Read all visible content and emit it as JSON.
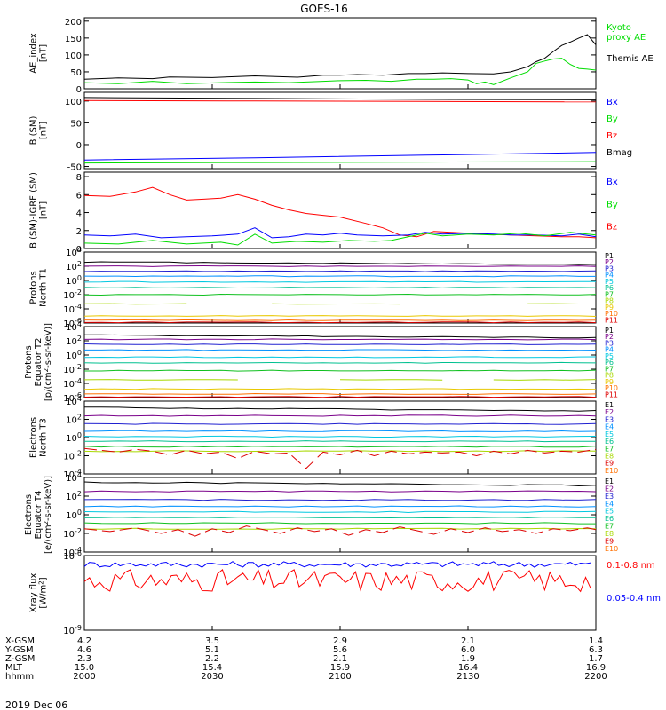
{
  "title": "GOES-16",
  "x_ticks": [
    "2000",
    "2030",
    "2100",
    "2130",
    "2200"
  ],
  "ephemeris": {
    "rows": [
      {
        "label": "X-GSM",
        "values": [
          "4.2",
          "3.5",
          "2.9",
          "2.1",
          "1.4"
        ]
      },
      {
        "label": "Y-GSM",
        "values": [
          "4.6",
          "5.1",
          "5.6",
          "6.0",
          "6.3"
        ]
      },
      {
        "label": "Z-GSM",
        "values": [
          "2.3",
          "2.2",
          "2.1",
          "1.9",
          "1.7"
        ]
      },
      {
        "label": "MLT",
        "values": [
          "15.0",
          "15.4",
          "15.9",
          "16.4",
          "16.9"
        ]
      },
      {
        "label": "hhmm",
        "values": []
      }
    ],
    "date": "2019 Dec 06"
  },
  "colors": {
    "black": "#000000",
    "red": "#ff0000",
    "green": "#00dd00",
    "blue": "#0000ff",
    "lime": "#22ee22",
    "channels": [
      "#000000",
      "#7a008a",
      "#2020d0",
      "#0090ff",
      "#00c8e0",
      "#00c090",
      "#10c020",
      "#a8d800",
      "#e8c800",
      "#ff7000",
      "#dd0000"
    ]
  },
  "chart_data": [
    {
      "type": "line",
      "ylabel": "AE_index\n[nT]",
      "y_ticks": [
        "200",
        "150",
        "100",
        "50",
        "0"
      ],
      "ylim": [
        0,
        210
      ],
      "legend": [
        {
          "label": "Kyoto\nproxy AE",
          "color": "#00dd00"
        },
        {
          "label": "Themis AE",
          "color": "#000000"
        }
      ],
      "series": [
        {
          "name": "Themis AE",
          "color": "#000000",
          "t": [
            0,
            4,
            8,
            10,
            15,
            20,
            25,
            28,
            30,
            32,
            35,
            38,
            40,
            42,
            45,
            48,
            50,
            52,
            53,
            54,
            55,
            56,
            57,
            58,
            59,
            60
          ],
          "y": [
            28,
            32,
            30,
            35,
            33,
            38,
            34,
            40,
            40,
            42,
            40,
            45,
            45,
            47,
            45,
            44,
            50,
            65,
            80,
            90,
            110,
            128,
            138,
            150,
            160,
            130
          ]
        },
        {
          "name": "Kyoto proxy AE",
          "color": "#00dd00",
          "t": [
            0,
            4,
            8,
            12,
            16,
            20,
            24,
            28,
            30,
            33,
            36,
            39,
            41,
            43,
            45,
            46,
            47,
            48,
            50,
            52,
            53,
            54,
            55,
            56,
            57,
            58,
            59,
            60
          ],
          "y": [
            18,
            15,
            22,
            15,
            18,
            20,
            18,
            22,
            24,
            25,
            22,
            28,
            28,
            30,
            26,
            15,
            20,
            12,
            32,
            50,
            75,
            82,
            88,
            90,
            72,
            60,
            58,
            55
          ]
        }
      ]
    },
    {
      "type": "line",
      "ylabel": "B (SM)\n[nT]",
      "y_ticks": [
        "100",
        "50",
        "0",
        "-50"
      ],
      "ylim": [
        -55,
        120
      ],
      "legend": [
        {
          "label": "Bx",
          "color": "#0000ff"
        },
        {
          "label": "By",
          "color": "#00dd00"
        },
        {
          "label": "Bz",
          "color": "#ff0000"
        },
        {
          "label": "Bmag",
          "color": "#000000"
        }
      ],
      "series": [
        {
          "name": "Bmag",
          "color": "#000000",
          "t": [
            0,
            20,
            40,
            60
          ],
          "y": [
            108,
            106,
            104,
            103
          ]
        },
        {
          "name": "Bz",
          "color": "#ff0000",
          "t": [
            0,
            20,
            40,
            60
          ],
          "y": [
            101,
            100,
            99,
            98
          ]
        },
        {
          "name": "Bx",
          "color": "#0000ff",
          "t": [
            0,
            20,
            40,
            60
          ],
          "y": [
            -35,
            -30,
            -24,
            -18
          ]
        },
        {
          "name": "By",
          "color": "#00dd00",
          "t": [
            0,
            20,
            40,
            60
          ],
          "y": [
            -42,
            -41,
            -40,
            -39
          ]
        }
      ]
    },
    {
      "type": "line",
      "ylabel": "B (SM)-IGRF (SM)\n[nT]",
      "y_ticks": [
        "8",
        "6",
        "4",
        "2",
        "0"
      ],
      "ylim": [
        0,
        8.5
      ],
      "legend": [
        {
          "label": "Bx",
          "color": "#0000ff"
        },
        {
          "label": "By",
          "color": "#00dd00"
        },
        {
          "label": "Bz",
          "color": "#ff0000"
        }
      ],
      "series": [
        {
          "name": "Bz",
          "color": "#ff0000",
          "t": [
            0,
            3,
            6,
            8,
            10,
            12,
            14,
            16,
            18,
            20,
            22,
            24,
            26,
            28,
            30,
            33,
            35,
            37,
            39,
            41,
            43,
            45,
            47,
            50,
            53,
            56,
            58,
            60
          ],
          "y": [
            5.9,
            5.8,
            6.3,
            6.8,
            6.0,
            5.4,
            5.5,
            5.6,
            6.0,
            5.5,
            4.8,
            4.3,
            3.9,
            3.7,
            3.5,
            2.8,
            2.3,
            1.5,
            1.3,
            1.9,
            1.8,
            1.7,
            1.6,
            1.5,
            1.4,
            1.3,
            1.3,
            1.2
          ]
        },
        {
          "name": "Bx",
          "color": "#0000ff",
          "t": [
            0,
            3,
            6,
            9,
            12,
            15,
            18,
            20,
            22,
            24,
            26,
            28,
            30,
            32,
            35,
            38,
            40,
            42,
            45,
            48,
            50,
            53,
            56,
            58,
            60
          ],
          "y": [
            1.5,
            1.4,
            1.6,
            1.2,
            1.3,
            1.4,
            1.6,
            2.3,
            1.2,
            1.3,
            1.6,
            1.5,
            1.7,
            1.5,
            1.4,
            1.5,
            1.8,
            1.6,
            1.7,
            1.6,
            1.5,
            1.5,
            1.4,
            1.6,
            1.3
          ]
        },
        {
          "name": "By",
          "color": "#00dd00",
          "t": [
            0,
            4,
            8,
            12,
            16,
            18,
            20,
            22,
            25,
            28,
            31,
            34,
            36,
            38,
            40,
            42,
            45,
            48,
            51,
            54,
            57,
            60
          ],
          "y": [
            0.6,
            0.5,
            0.9,
            0.5,
            0.7,
            0.4,
            1.6,
            0.6,
            0.8,
            0.7,
            0.9,
            0.8,
            0.9,
            1.3,
            1.7,
            1.4,
            1.6,
            1.5,
            1.7,
            1.4,
            1.8,
            1.5
          ]
        }
      ]
    },
    {
      "type": "line",
      "ylabel": "Protons\nNorth T1",
      "log": true,
      "ylim_log10": [
        -6,
        4
      ],
      "y_ticks": [
        "10^4",
        "10^2",
        "10^0",
        "10^-2",
        "10^-4",
        "10^-6"
      ],
      "channel_labels": [
        "P1",
        "P2",
        "P3",
        "P4",
        "P5",
        "P6",
        "P7",
        "P8",
        "P9",
        "P10",
        "P11"
      ],
      "levels_log10": [
        2.6,
        2.0,
        1.3,
        0.6,
        -0.2,
        -1.0,
        -2.0,
        -3.3,
        -5.0,
        -5.6,
        -5.9
      ],
      "gaps": [
        null,
        null,
        null,
        null,
        null,
        null,
        null,
        [
          0,
          12,
          22,
          38,
          52,
          58
        ],
        null,
        null,
        null
      ]
    },
    {
      "type": "line",
      "ylabel": "Protons\nEquator T2\n[p/(cm^2-s-sr-keV)]",
      "log": true,
      "ylim_log10": [
        -6,
        4
      ],
      "y_ticks": [
        "10^4",
        "10^2",
        "10^0",
        "10^-2",
        "10^-4",
        "10^-6"
      ],
      "channel_labels": [
        "P1",
        "P2",
        "P3",
        "P4",
        "P5",
        "P6",
        "P7",
        "P8",
        "P9",
        "P10",
        "P11"
      ],
      "levels_log10": [
        2.8,
        2.2,
        1.5,
        0.7,
        -0.3,
        -1.1,
        -2.2,
        -3.5,
        -4.8,
        -5.5,
        -5.9
      ],
      "gaps": [
        null,
        null,
        null,
        null,
        null,
        null,
        null,
        [
          0,
          20,
          30,
          42,
          48,
          60
        ],
        null,
        null,
        null
      ]
    },
    {
      "type": "line",
      "ylabel": "Electrons\nNorth T3",
      "log": true,
      "ylim_log10": [
        -4,
        4
      ],
      "y_ticks": [
        "10^4",
        "10^2",
        "10^0",
        "10^-2",
        "10^-4"
      ],
      "channel_labels": [
        "E1",
        "E2",
        "E3",
        "E4",
        "E5",
        "E6",
        "E7",
        "E8",
        "E9",
        "E10"
      ],
      "levels_log10": [
        3.3,
        2.4,
        1.5,
        0.7,
        0.1,
        -0.4,
        -1.0,
        -1.5,
        -3.5,
        -3.9
      ],
      "electron_red": {
        "t": [
          0,
          2,
          4,
          6,
          8,
          10,
          12,
          14,
          16,
          18,
          20,
          22,
          24,
          26,
          28,
          30,
          32,
          34,
          36,
          38,
          40,
          42,
          44,
          46,
          48,
          50,
          52,
          54,
          56,
          58,
          60
        ],
        "y": [
          -1.2,
          -1.4,
          -1.6,
          -1.3,
          -1.5,
          -1.9,
          -1.4,
          -1.8,
          -1.6,
          -2.3,
          -1.5,
          -1.8,
          -1.7,
          -3.4,
          -1.6,
          -1.9,
          -1.4,
          -2.0,
          -1.5,
          -1.8,
          -1.6,
          -1.7,
          -1.6,
          -2.0,
          -1.5,
          -1.8,
          -1.4,
          -1.7,
          -1.5,
          -1.6,
          -1.3
        ]
      }
    },
    {
      "type": "line",
      "ylabel": "Electrons\nEquator T4\n[e/(cm^2-s-sr-keV)]",
      "log": true,
      "ylim_log10": [
        -4,
        4
      ],
      "y_ticks": [
        "10^4",
        "10^2",
        "10^0",
        "10^-2",
        "10^-4"
      ],
      "channel_labels": [
        "E1",
        "E2",
        "E3",
        "E4",
        "E5",
        "E6",
        "E7",
        "E8",
        "E9",
        "E10"
      ],
      "levels_log10": [
        3.5,
        2.5,
        1.6,
        0.9,
        0.3,
        -0.3,
        -0.9,
        -1.5,
        -3.4,
        -3.9
      ],
      "electron_red": {
        "t": [
          0,
          3,
          6,
          9,
          11,
          13,
          15,
          17,
          19,
          21,
          23,
          25,
          27,
          29,
          31,
          33,
          35,
          37,
          39,
          41,
          43,
          45,
          47,
          49,
          51,
          53,
          55,
          57,
          59,
          60
        ],
        "y": [
          -1.5,
          -1.8,
          -1.4,
          -2.0,
          -1.6,
          -2.3,
          -1.5,
          -1.9,
          -1.2,
          -1.6,
          -2.0,
          -1.4,
          -1.8,
          -1.5,
          -2.2,
          -1.6,
          -1.9,
          -1.3,
          -1.7,
          -2.1,
          -1.5,
          -1.9,
          -1.4,
          -1.8,
          -1.6,
          -2.0,
          -1.5,
          -1.7,
          -1.4,
          -1.6
        ]
      }
    },
    {
      "type": "line",
      "ylabel": "Xray flux\n[W/m^2]",
      "log": true,
      "ylim_log10": [
        -9,
        -6
      ],
      "y_ticks": [
        "10^-6",
        "10^-9"
      ],
      "legend": [
        {
          "label": "0.1-0.8 nm",
          "color": "#ff0000"
        },
        {
          "label": "0.05-0.4 nm",
          "color": "#0000ff"
        }
      ],
      "series": [
        {
          "name": "0.1-0.8 nm",
          "color": "#ff0000",
          "base_log10": -7.0,
          "amp": 0.45
        },
        {
          "name": "0.05-0.4 nm",
          "color": "#0000ff",
          "base_log10": -6.35,
          "amp": 0.12
        }
      ]
    }
  ]
}
